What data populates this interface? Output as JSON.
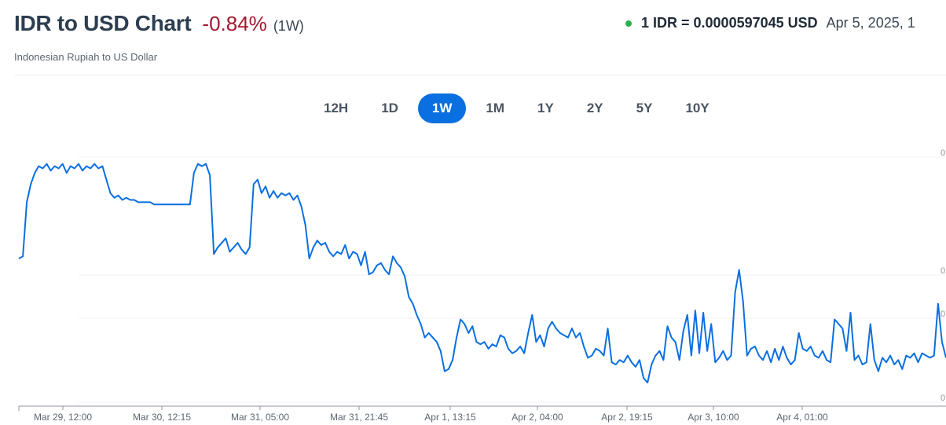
{
  "header": {
    "title": "IDR to USD Chart",
    "change": "-0.84%",
    "period": "(1W)",
    "subtitle": "Indonesian Rupiah to US Dollar",
    "rate": "1 IDR = 0.0000597045 USD",
    "date": "Apr 5, 2025, 1"
  },
  "tabs": [
    "12H",
    "1D",
    "1W",
    "1M",
    "1Y",
    "2Y",
    "5Y",
    "10Y"
  ],
  "active_tab": "1W",
  "colors": {
    "line": "#0a6fe0",
    "accent": "#0a6fe0",
    "negative": "#a3182d",
    "live": "#2bb24c"
  },
  "chart_data": {
    "type": "line",
    "title": "",
    "xlabel": "",
    "ylabel": "",
    "x_tick_labels": [
      "Mar 29, 12:00",
      "Mar 30, 12:15",
      "Mar 31, 05:00",
      "Mar 31, 21:45",
      "Apr 1, 13:15",
      "Apr 2, 04:00",
      "Apr 2, 19:15",
      "Apr 3, 10:00",
      "Apr 4, 01:00"
    ],
    "y_tick_labels": [
      "0",
      "0",
      "0",
      "0"
    ],
    "ylim": [
      0,
      100
    ],
    "grid": true,
    "series": [
      {
        "values": [
          55,
          56,
          80,
          88,
          93,
          96,
          95,
          97,
          94,
          96,
          95,
          97,
          93,
          96,
          95,
          97,
          94,
          96,
          95,
          97,
          95,
          96,
          90,
          84,
          82,
          83,
          81,
          82,
          81,
          81,
          80,
          80,
          80,
          80,
          79,
          79,
          79,
          79,
          79,
          79,
          79,
          79,
          79,
          79,
          93,
          97,
          96,
          97,
          92,
          57,
          60,
          62,
          64,
          58,
          60,
          62,
          59,
          57,
          60,
          88,
          90,
          84,
          87,
          82,
          85,
          82,
          84,
          83,
          84,
          81,
          83,
          78,
          70,
          55,
          60,
          63,
          61,
          62,
          58,
          56,
          58,
          57,
          61,
          55,
          58,
          57,
          52,
          58,
          48,
          49,
          52,
          53,
          50,
          48,
          56,
          53,
          51,
          47,
          38,
          35,
          30,
          26,
          20,
          22,
          20,
          18,
          14,
          5,
          6,
          10,
          20,
          28,
          26,
          22,
          25,
          18,
          17,
          18,
          15,
          17,
          16,
          21,
          20,
          15,
          13,
          14,
          16,
          13,
          22,
          30,
          18,
          21,
          16,
          24,
          27,
          24,
          22,
          21,
          20,
          24,
          20,
          22,
          16,
          11,
          12,
          15,
          14,
          12,
          24,
          9,
          8,
          10,
          9,
          12,
          9,
          7,
          10,
          2,
          0,
          8,
          12,
          14,
          10,
          25,
          20,
          18,
          10,
          23,
          30,
          12,
          32,
          13,
          31,
          14,
          26,
          9,
          11,
          14,
          10,
          12,
          40,
          50,
          36,
          12,
          15,
          16,
          12,
          10,
          14,
          9,
          15,
          10,
          16,
          11,
          8,
          10,
          22,
          15,
          14,
          16,
          12,
          11,
          14,
          10,
          9,
          28,
          26,
          24,
          14,
          31,
          10,
          12,
          8,
          9,
          26,
          10,
          5,
          11,
          9,
          12,
          8,
          10,
          6,
          12,
          11,
          13,
          9,
          13,
          12,
          11,
          12,
          35,
          18,
          11
        ]
      }
    ]
  }
}
